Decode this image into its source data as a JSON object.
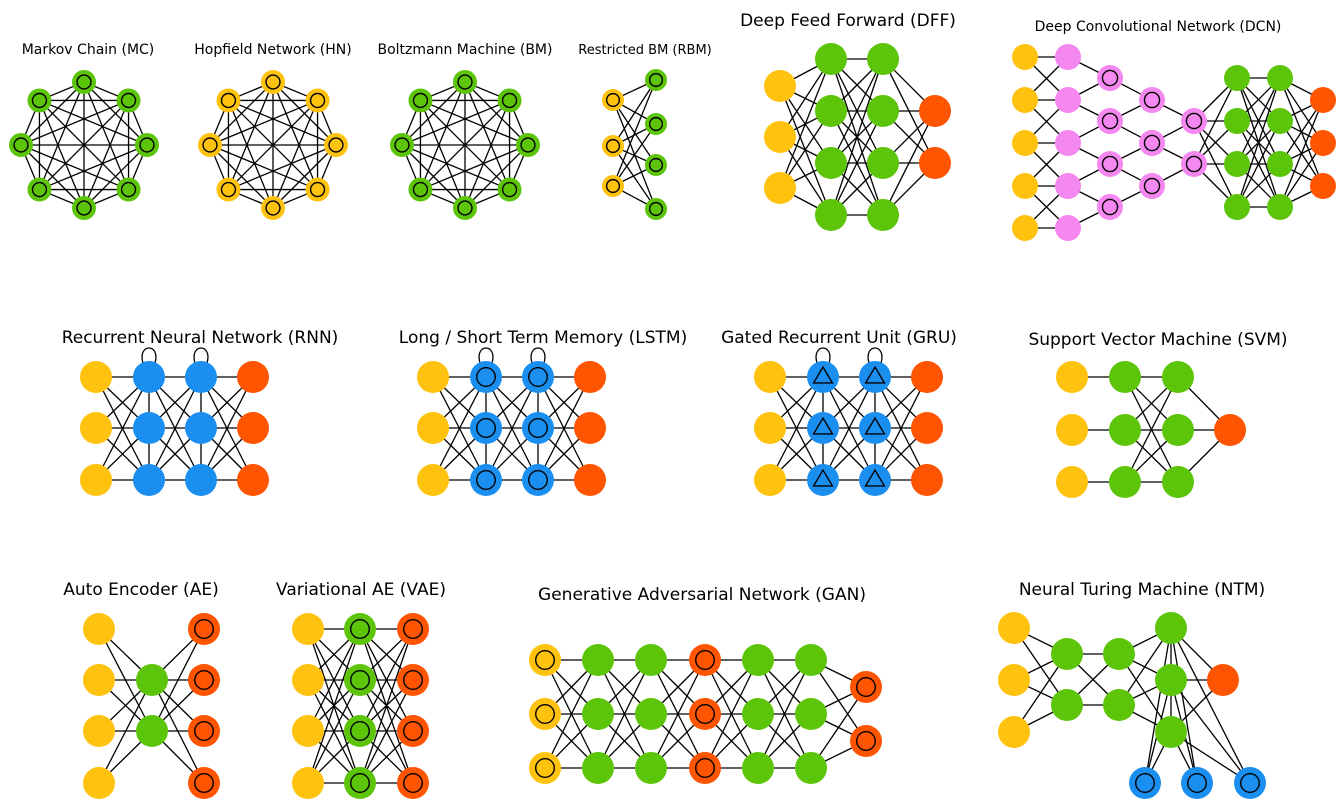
{
  "colors": {
    "green": "#5cc50a",
    "yellow": "#ffc20e",
    "orange": "#ff5400",
    "blue": "#1a8ff0",
    "pink": "#f587f0",
    "edge": "#000000"
  },
  "networks": [
    {
      "id": "mc",
      "title": "Markov Chain (MC)"
    },
    {
      "id": "hn",
      "title": "Hopfield Network (HN)"
    },
    {
      "id": "bm",
      "title": "Boltzmann Machine (BM)"
    },
    {
      "id": "rbm",
      "title": "Restricted BM (RBM)"
    },
    {
      "id": "dff",
      "title": "Deep Feed Forward (DFF)"
    },
    {
      "id": "dcn",
      "title": "Deep Convolutional Network (DCN)"
    },
    {
      "id": "rnn",
      "title": "Recurrent Neural Network (RNN)"
    },
    {
      "id": "lstm",
      "title": "Long / Short Term Memory (LSTM)"
    },
    {
      "id": "gru",
      "title": "Gated Recurrent Unit (GRU)"
    },
    {
      "id": "svm",
      "title": "Support Vector Machine (SVM)"
    },
    {
      "id": "ae",
      "title": "Auto Encoder (AE)"
    },
    {
      "id": "vae",
      "title": "Variational AE (VAE)"
    },
    {
      "id": "gan",
      "title": "Generative Adversarial Network (GAN)"
    },
    {
      "id": "ntm",
      "title": "Neural Turing Machine (NTM)"
    }
  ]
}
